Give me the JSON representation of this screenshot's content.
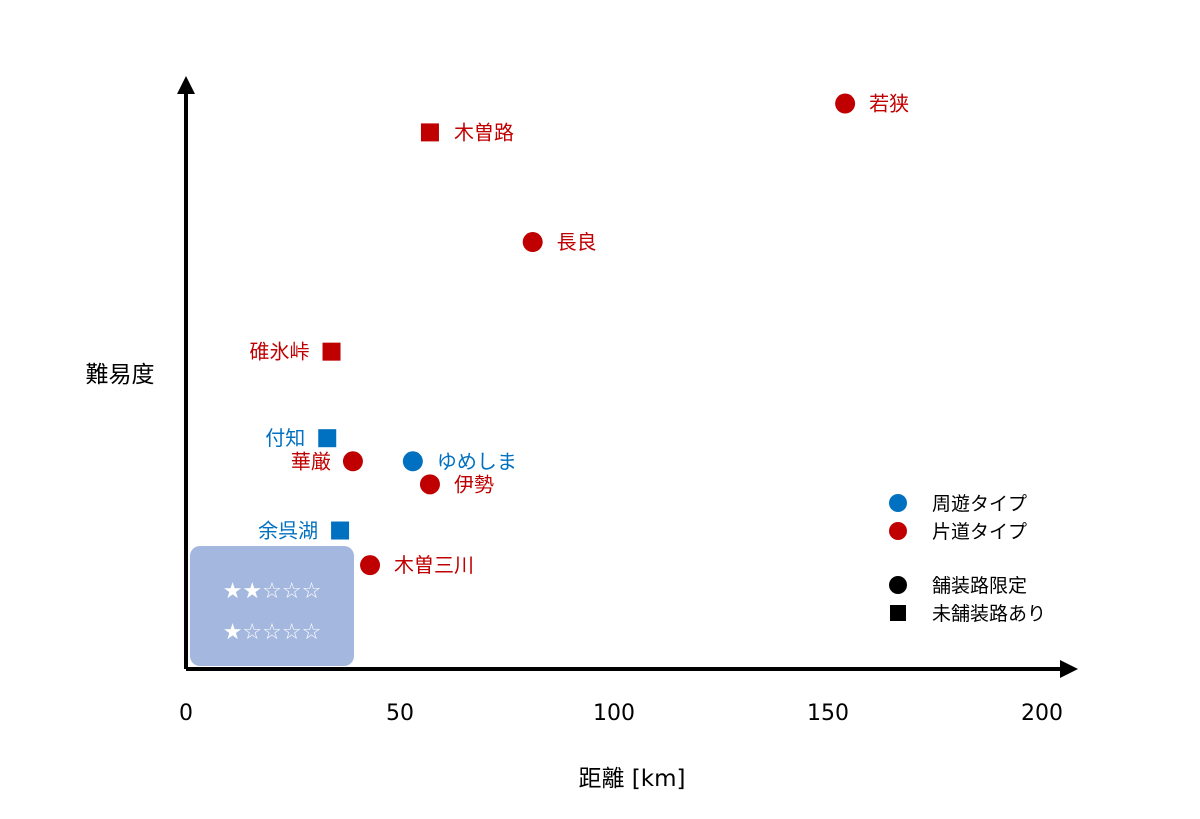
{
  "chart_data": {
    "type": "scatter",
    "title": "",
    "xlabel": "距離 [km]",
    "ylabel": "難易度",
    "xlim": [
      0,
      200
    ],
    "x_ticks": [
      "0",
      "50",
      "100",
      "150",
      "200"
    ],
    "y_ticks_shown": false,
    "grid": false,
    "legend_position": "right",
    "colors": {
      "loop": "#0070c0",
      "oneway": "#c00000",
      "black": "#000000"
    },
    "legend": {
      "type_entries": [
        {
          "label": "周遊タイプ",
          "color": "#0070c0",
          "marker": "circle"
        },
        {
          "label": "片道タイプ",
          "color": "#c00000",
          "marker": "circle"
        }
      ],
      "surface_entries": [
        {
          "label": "舗装路限定",
          "marker": "circle"
        },
        {
          "label": "未舗装路あり",
          "marker": "square"
        }
      ]
    },
    "difficulty_box": {
      "levels": [
        "★★☆☆☆",
        "★☆☆☆☆"
      ]
    },
    "points": [
      {
        "name": "若狭",
        "x": 154,
        "y": 0.98,
        "type": "片道タイプ",
        "surface": "舗装路限定",
        "color": "#c00000",
        "marker": "circle",
        "label_side": "right"
      },
      {
        "name": "木曽路",
        "x": 57,
        "y": 0.93,
        "type": "片道タイプ",
        "surface": "未舗装路あり",
        "color": "#c00000",
        "marker": "square",
        "label_side": "right"
      },
      {
        "name": "長良",
        "x": 81,
        "y": 0.74,
        "type": "片道タイプ",
        "surface": "舗装路限定",
        "color": "#c00000",
        "marker": "circle",
        "label_side": "right"
      },
      {
        "name": "碓氷峠",
        "x": 34,
        "y": 0.55,
        "type": "片道タイプ",
        "surface": "未舗装路あり",
        "color": "#c00000",
        "marker": "square",
        "label_side": "left"
      },
      {
        "name": "付知",
        "x": 33,
        "y": 0.4,
        "type": "周遊タイプ",
        "surface": "未舗装路あり",
        "color": "#0070c0",
        "marker": "square",
        "label_side": "left"
      },
      {
        "name": "華厳",
        "x": 39,
        "y": 0.36,
        "type": "片道タイプ",
        "surface": "舗装路限定",
        "color": "#c00000",
        "marker": "circle",
        "label_side": "left"
      },
      {
        "name": "ゆめしま",
        "x": 53,
        "y": 0.36,
        "type": "周遊タイプ",
        "surface": "舗装路限定",
        "color": "#0070c0",
        "marker": "circle",
        "label_side": "right"
      },
      {
        "name": "伊勢",
        "x": 57,
        "y": 0.32,
        "type": "片道タイプ",
        "surface": "舗装路限定",
        "color": "#c00000",
        "marker": "circle",
        "label_side": "right"
      },
      {
        "name": "余呉湖",
        "x": 36,
        "y": 0.24,
        "type": "周遊タイプ",
        "surface": "未舗装路あり",
        "color": "#0070c0",
        "marker": "square",
        "label_side": "left"
      },
      {
        "name": "木曽三川",
        "x": 43,
        "y": 0.18,
        "type": "片道タイプ",
        "surface": "舗装路限定",
        "color": "#c00000",
        "marker": "circle",
        "label_side": "right"
      }
    ]
  }
}
